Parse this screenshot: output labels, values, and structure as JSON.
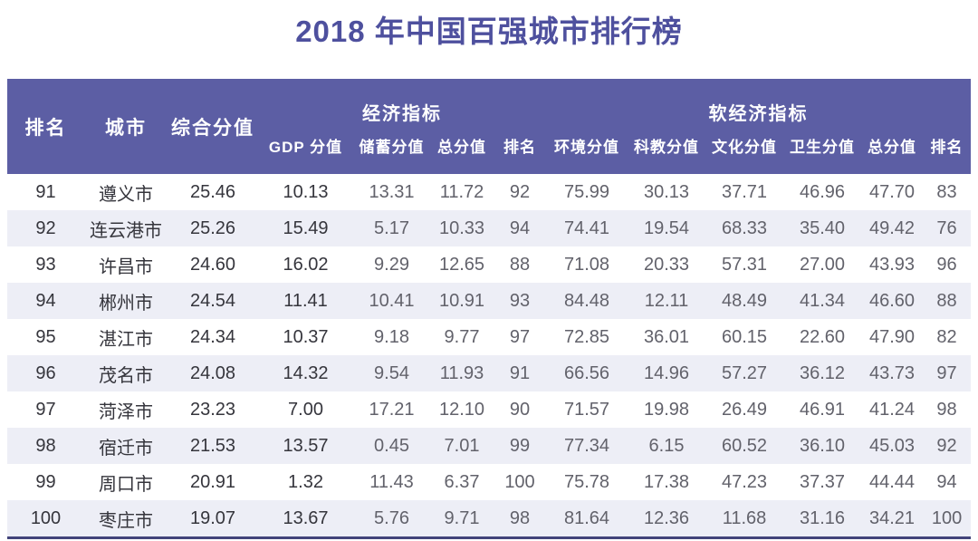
{
  "page_title": "2018 年中国百强城市排行榜",
  "colors": {
    "header_bg": "#5c5ea4",
    "header_text": "#ffffff",
    "title_text": "#4e509e",
    "row_alt_bg": "#edeef6",
    "row_bg": "#ffffff",
    "bottom_line": "#42437a",
    "dark_text": "#35353c",
    "gray_text": "#62626b"
  },
  "chart_data": {
    "type": "table",
    "title": "2018 年中国百强城市排行榜",
    "base_headers": {
      "rank": "排名",
      "city": "城市",
      "composite": "综合分值"
    },
    "groups": {
      "econ": "经济指标",
      "soft": "软经济指标"
    },
    "econ_headers": [
      "GDP 分值",
      "储蓄分值",
      "总分值",
      "排名"
    ],
    "soft_headers": [
      "环境分值",
      "科教分值",
      "文化分值",
      "卫生分值",
      "总分值",
      "排名"
    ],
    "column_keys": [
      "rank",
      "city",
      "composite_score",
      "gdp_score",
      "savings_score",
      "econ_total_score",
      "econ_rank",
      "env_score",
      "sci_edu_score",
      "culture_score",
      "health_score",
      "soft_total_score",
      "soft_rank"
    ],
    "dark_column_indexes": [
      0,
      1,
      2,
      3
    ],
    "rows": [
      [
        "91",
        "遵义市",
        "25.46",
        "10.13",
        "13.31",
        "11.72",
        "92",
        "75.99",
        "30.13",
        "37.71",
        "46.96",
        "47.70",
        "83"
      ],
      [
        "92",
        "连云港市",
        "25.26",
        "15.49",
        "5.17",
        "10.33",
        "94",
        "74.41",
        "19.54",
        "68.33",
        "35.40",
        "49.42",
        "76"
      ],
      [
        "93",
        "许昌市",
        "24.60",
        "16.02",
        "9.29",
        "12.65",
        "88",
        "71.08",
        "20.33",
        "57.31",
        "27.00",
        "43.93",
        "96"
      ],
      [
        "94",
        "郴州市",
        "24.54",
        "11.41",
        "10.41",
        "10.91",
        "93",
        "84.48",
        "12.11",
        "48.49",
        "41.34",
        "46.60",
        "88"
      ],
      [
        "95",
        "湛江市",
        "24.34",
        "10.37",
        "9.18",
        "9.77",
        "97",
        "72.85",
        "36.01",
        "60.15",
        "22.60",
        "47.90",
        "82"
      ],
      [
        "96",
        "茂名市",
        "24.08",
        "14.32",
        "9.54",
        "11.93",
        "91",
        "66.56",
        "14.96",
        "57.27",
        "36.12",
        "43.73",
        "97"
      ],
      [
        "97",
        "菏泽市",
        "23.23",
        "7.00",
        "17.21",
        "12.10",
        "90",
        "71.57",
        "19.98",
        "26.49",
        "46.91",
        "41.24",
        "98"
      ],
      [
        "98",
        "宿迁市",
        "21.53",
        "13.57",
        "0.45",
        "7.01",
        "99",
        "77.34",
        "6.15",
        "60.52",
        "36.10",
        "45.03",
        "92"
      ],
      [
        "99",
        "周口市",
        "20.91",
        "1.32",
        "11.43",
        "6.37",
        "100",
        "75.78",
        "17.38",
        "47.23",
        "37.37",
        "44.44",
        "94"
      ],
      [
        "100",
        "枣庄市",
        "19.07",
        "13.67",
        "5.76",
        "9.71",
        "98",
        "81.64",
        "12.36",
        "11.68",
        "31.16",
        "34.21",
        "100"
      ]
    ]
  }
}
